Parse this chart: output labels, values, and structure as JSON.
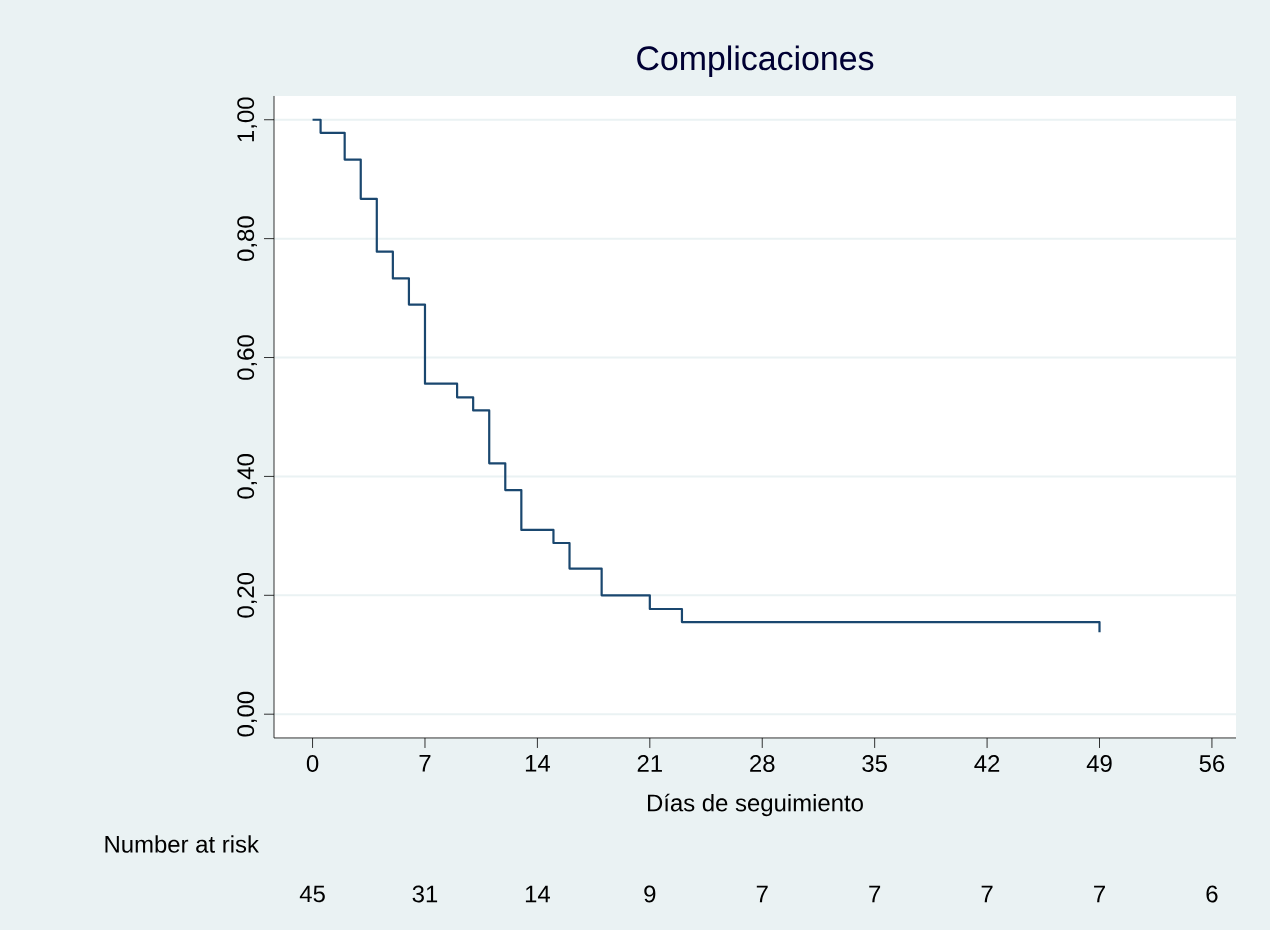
{
  "chart_data": {
    "type": "step",
    "title": "Complicaciones",
    "xlabel": "Días de seguimiento",
    "x": [
      0,
      0.5,
      2,
      3,
      4,
      5,
      6,
      7,
      9,
      10,
      11,
      12,
      13,
      15,
      16,
      18,
      21,
      23,
      49
    ],
    "series": [
      {
        "color": "#1a476f",
        "values": [
          1.0,
          0.978,
          0.933,
          0.867,
          0.778,
          0.733,
          0.689,
          0.556,
          0.533,
          0.511,
          0.422,
          0.377,
          0.31,
          0.288,
          0.245,
          0.2,
          0.177,
          0.155,
          0.138
        ]
      }
    ],
    "xlim": [
      -2.4,
      57.5
    ],
    "ylim": [
      -0.04,
      1.04
    ],
    "xticks": [
      0,
      7,
      14,
      21,
      28,
      35,
      42,
      49,
      56
    ],
    "yticks": [
      {
        "value": 0,
        "label": "0,00"
      },
      {
        "value": 0.2,
        "label": "0,20"
      },
      {
        "value": 0.4,
        "label": "0,40"
      },
      {
        "value": 0.6,
        "label": "0,60"
      },
      {
        "value": 0.8,
        "label": "0,80"
      },
      {
        "value": 1,
        "label": "1,00"
      }
    ],
    "grid": "y",
    "marker": "none",
    "line_style": "solid",
    "annotations": [
      "Number at risk",
      "45",
      "31",
      "14",
      "9",
      "7",
      "7",
      "7",
      "7",
      "6"
    ]
  }
}
